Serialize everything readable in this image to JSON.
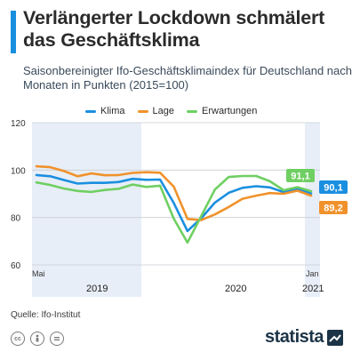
{
  "header": {
    "title": "Verlängerter Lockdown schmälert das Geschäftsklima",
    "subtitle": "Saisonbereinigter Ifo-Geschäftsklimaindex für Deutschland nach Monaten in Punkten (2015=100)"
  },
  "legend": [
    {
      "name": "Klima",
      "color": "#1a8fe0"
    },
    {
      "name": "Lage",
      "color": "#f0922b"
    },
    {
      "name": "Erwartungen",
      "color": "#6fcf62"
    }
  ],
  "chart_data": {
    "type": "line",
    "x": [
      "2019-05",
      "2019-06",
      "2019-07",
      "2019-08",
      "2019-09",
      "2019-10",
      "2019-11",
      "2019-12",
      "2020-01",
      "2020-02",
      "2020-03",
      "2020-04",
      "2020-05",
      "2020-06",
      "2020-07",
      "2020-08",
      "2020-09",
      "2020-10",
      "2020-11",
      "2020-12",
      "2021-01"
    ],
    "ylim": [
      60,
      120
    ],
    "yticks": [
      60,
      80,
      100,
      120
    ],
    "xtick_labels": {
      "start": "Mai",
      "end": "Jan"
    },
    "year_labels": [
      "2019",
      "2020",
      "2021"
    ],
    "shaded_periods": [
      "2019",
      "2021"
    ],
    "grid": true,
    "legend_position": "top",
    "series": [
      {
        "name": "Klima",
        "color": "#1a8fe0",
        "values": [
          97.9,
          97.4,
          95.8,
          94.3,
          94.6,
          94.6,
          95.0,
          96.3,
          95.9,
          96.0,
          86.1,
          74.3,
          79.7,
          86.3,
          90.4,
          92.5,
          93.2,
          92.7,
          90.7,
          92.1,
          90.1
        ]
      },
      {
        "name": "Lage",
        "color": "#f0922b",
        "values": [
          101.6,
          101.2,
          99.6,
          97.4,
          98.6,
          97.8,
          97.9,
          98.8,
          99.1,
          98.9,
          93.0,
          79.4,
          78.9,
          81.3,
          84.4,
          87.9,
          89.2,
          90.3,
          90.0,
          91.3,
          89.2
        ]
      },
      {
        "name": "Erwartungen",
        "color": "#6fcf62",
        "values": [
          94.8,
          93.7,
          92.2,
          91.2,
          90.8,
          91.6,
          92.1,
          93.9,
          92.9,
          93.4,
          79.5,
          69.4,
          80.6,
          91.8,
          97.1,
          97.5,
          97.5,
          95.3,
          91.5,
          92.8,
          91.1
        ]
      }
    ],
    "end_labels": [
      {
        "series": "Erwartungen",
        "text": "91,1",
        "color": "#6fcf62"
      },
      {
        "series": "Klima",
        "text": "90,1",
        "color": "#1a8fe0"
      },
      {
        "series": "Lage",
        "text": "89,2",
        "color": "#f0922b"
      }
    ]
  },
  "footer": {
    "source": "Quelle: Ifo-Institut",
    "brand": "statista",
    "icons": [
      "cc-icon",
      "by-icon",
      "nd-icon"
    ]
  }
}
